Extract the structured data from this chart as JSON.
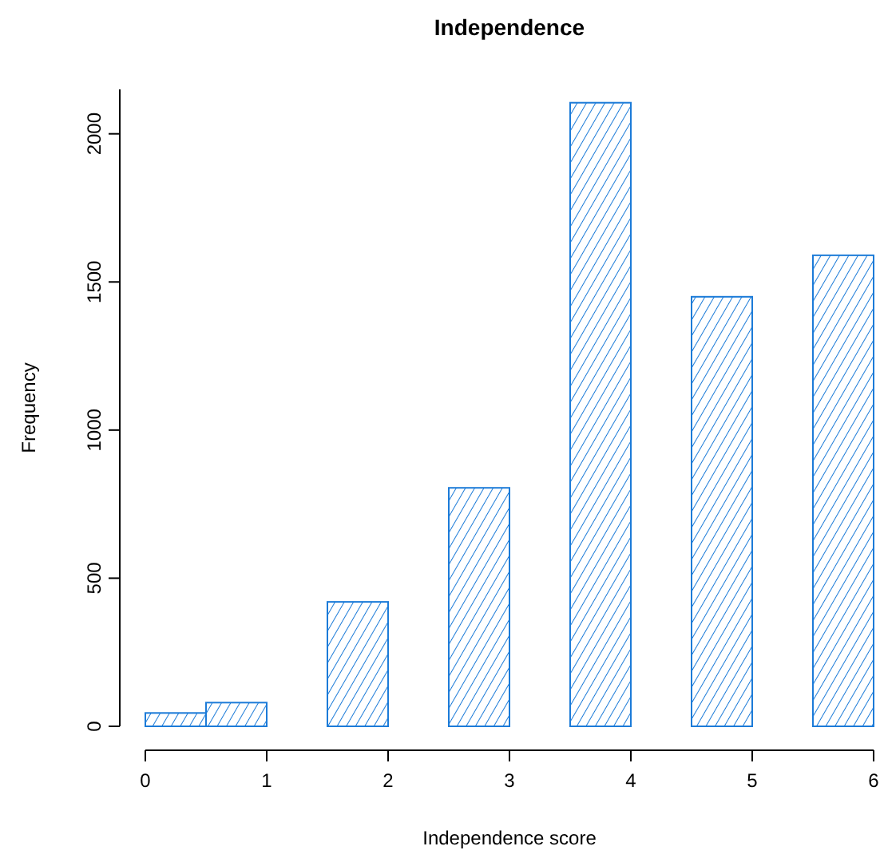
{
  "chart_data": {
    "type": "histogram",
    "title": "Independence",
    "xlabel": "Independence score",
    "ylabel": "Frequency",
    "bins": [
      0,
      0.5,
      1,
      1.5,
      2,
      2.5,
      3,
      3.5,
      4,
      4.5,
      5,
      5.5,
      6
    ],
    "values": [
      45,
      80,
      0,
      420,
      0,
      805,
      0,
      2105,
      0,
      1450,
      0,
      1590
    ],
    "color": "#1c7bd8",
    "xlim": [
      0,
      6
    ],
    "xticks": [
      0,
      1,
      2,
      3,
      4,
      5,
      6
    ],
    "ylim": [
      0,
      2150
    ],
    "yticks": [
      0,
      500,
      1000,
      1500,
      2000
    ],
    "grid": false
  }
}
